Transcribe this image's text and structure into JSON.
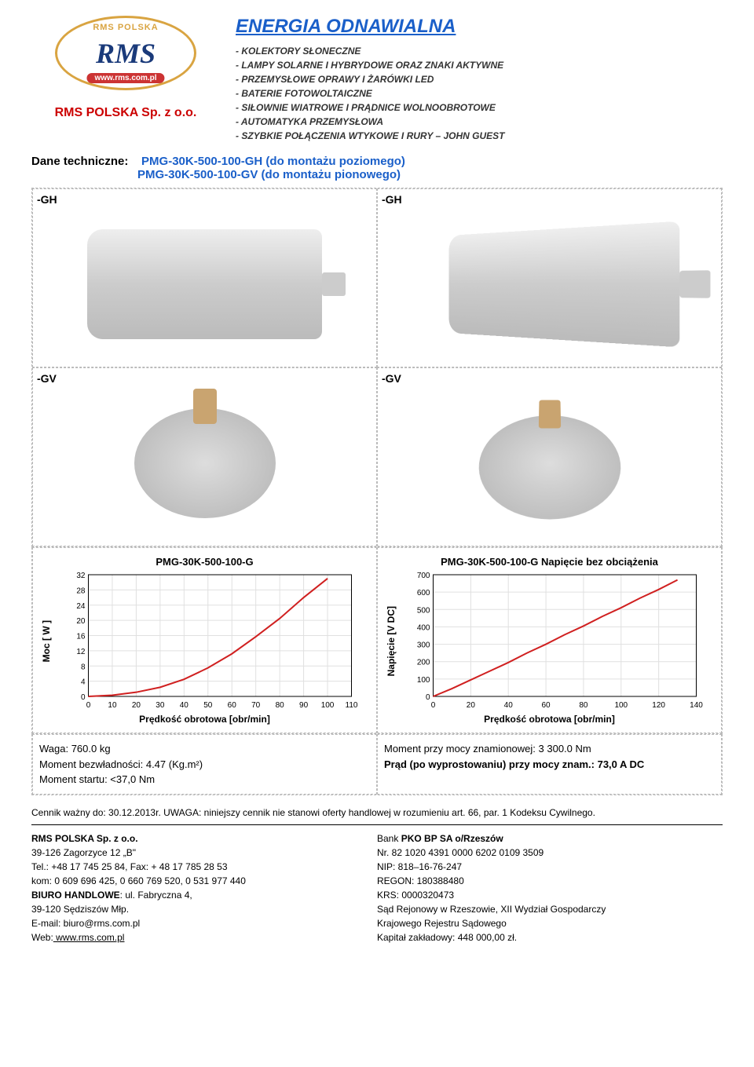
{
  "header": {
    "logo_top": "RMS POLSKA",
    "logo_center": "RMS",
    "logo_bottom": "www.rms.com.pl",
    "company_name": "RMS POLSKA  Sp. z o.o.",
    "main_title": "ENERGIA ODNAWIALNA",
    "products": [
      "KOLEKTORY SŁONECZNE",
      "LAMPY SOLARNE I HYBRYDOWE ORAZ ZNAKI AKTYWNE",
      "PRZEMYSŁOWE OPRAWY I ŻARÓWKI LED",
      "BATERIE FOTOWOLTAICZNE",
      "SIŁOWNIE WIATROWE I PRĄDNICE WOLNOOBROTOWE",
      "AUTOMATYKA PRZEMYSŁOWA",
      "SZYBKIE POŁĄCZENIA WTYKOWE I RURY – JOHN GUEST"
    ]
  },
  "specs": {
    "label": "Dane techniczne:",
    "model_gh": "PMG-30K-500-100-GH  (do montażu poziomego)",
    "model_gv": "PMG-30K-500-100-GV  (do montażu pionowego)"
  },
  "image_labels": {
    "gh": "-GH",
    "gv": "-GV"
  },
  "chart_left": {
    "title": "PMG-30K-500-100-G",
    "type": "line",
    "ylabel": "Moc [ W ]",
    "xlabel": "Prędkość obrotowa [obr/min]",
    "xlim": [
      0,
      110
    ],
    "xtick_step": 10,
    "ylim": [
      0,
      32
    ],
    "yticks": [
      0,
      4,
      8,
      12,
      16,
      20,
      24,
      28,
      32
    ],
    "x": [
      0,
      10,
      20,
      30,
      40,
      50,
      60,
      70,
      80,
      90,
      100
    ],
    "y": [
      0,
      0.3,
      1.1,
      2.4,
      4.5,
      7.5,
      11.2,
      15.7,
      20.5,
      26,
      31
    ],
    "line_color": "#d02020",
    "line_width": 2,
    "grid_color": "#e0e0e0",
    "background_color": "#ffffff",
    "axis_color": "#000000",
    "label_fontsize": 12
  },
  "chart_right": {
    "title": "PMG-30K-500-100-G   Napięcie bez obciążenia",
    "type": "line",
    "ylabel": "Napięcie [V DC]",
    "xlabel": "Prędkość obrotowa [obr/min]",
    "xlim": [
      0,
      140
    ],
    "xtick_step": 20,
    "ylim": [
      0,
      700
    ],
    "ytick_step": 100,
    "x": [
      0,
      10,
      20,
      30,
      40,
      50,
      60,
      70,
      80,
      90,
      100,
      110,
      120,
      130
    ],
    "y": [
      0,
      45,
      95,
      145,
      195,
      250,
      300,
      355,
      405,
      460,
      510,
      565,
      615,
      670
    ],
    "line_color": "#d02020",
    "line_width": 2,
    "grid_color": "#e0e0e0",
    "background_color": "#ffffff",
    "axis_color": "#000000",
    "label_fontsize": 12
  },
  "bottom_left": {
    "l1": "Waga: 760.0 kg",
    "l2": "Moment bezwładności: 4.47 (Kg.m²)",
    "l3": "Moment startu: <37,0 Nm"
  },
  "bottom_right": {
    "l1": "Moment przy mocy znamionowej:  3 300.0 Nm",
    "l2": "Prąd (po wyprostowaniu) przy mocy znam.: 73,0 A DC"
  },
  "footer_note": {
    "prefix": "Cennik ważny do: 30.12.2013r.    UWAGA:  ",
    "text": "niniejszy cennik nie stanowi oferty handlowej w rozumieniu art. 66, par. 1 Kodeksu Cywilnego."
  },
  "footer_left": {
    "name": "RMS POLSKA  Sp. z o.o.",
    "addr": "39-126 Zagorzyce 12 „B\"",
    "tel": "Tel.: +48 17 745 25 84,  Fax: + 48 17 785 28 53",
    "kom": "kom: 0 609 696 425, 0 660 769 520, 0 531 977 440",
    "biuro_lbl": "BIURO HANDLOWE",
    "biuro_val": ":  ul. Fabryczna 4,",
    "biuro2": "39-120 Sędziszów Młp.",
    "email": "E-mail: biuro@rms.com.pl",
    "web_lbl": "Web:",
    "web_val": " www.rms.com.pl"
  },
  "footer_right": {
    "bank": "Bank PKO BP SA  o/Rzeszów",
    "nr": "Nr.  82 1020 4391 0000 6202 0109 3509",
    "nip": "NIP: 818–16-76-247",
    "regon": "REGON: 180388480",
    "krs": "KRS: 0000320473",
    "sad": "Sąd Rejonowy w Rzeszowie, XII Wydział Gospodarczy",
    "reg": "Krajowego Rejestru Sądowego",
    "kap": "Kapitał zakładowy: 448 000,00 zł."
  }
}
